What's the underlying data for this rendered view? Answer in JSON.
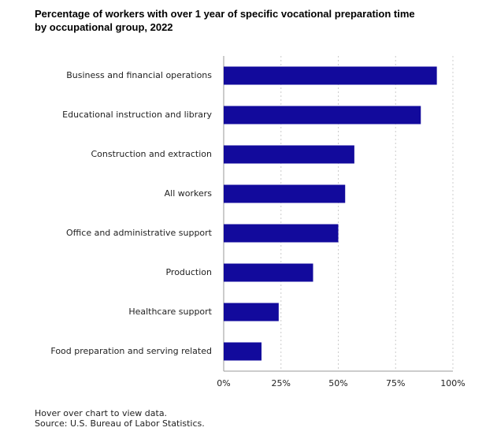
{
  "chart_data": {
    "type": "bar",
    "title": "Percentage of workers with over 1 year of specific vocational preparation time by occupational group, 2022",
    "categories": [
      "Business and financial operations",
      "Educational instruction and library",
      "Construction and extraction",
      "All workers",
      "Office and administrative support",
      "Production",
      "Healthcare support",
      "Food preparation and serving related"
    ],
    "values": [
      93,
      86,
      57,
      53,
      50,
      39,
      24,
      16.5
    ],
    "color": "#120a9c",
    "xlim": [
      0,
      100
    ],
    "xticks": [
      {
        "value": 0,
        "label": "0%"
      },
      {
        "value": 25,
        "label": "25%"
      },
      {
        "value": 50,
        "label": "50%"
      },
      {
        "value": 75,
        "label": "75%"
      },
      {
        "value": 100,
        "label": "100%"
      }
    ],
    "grid": true,
    "footnote": "Hover over chart to view data.",
    "source": "Source: U.S. Bureau of Labor Statistics."
  }
}
